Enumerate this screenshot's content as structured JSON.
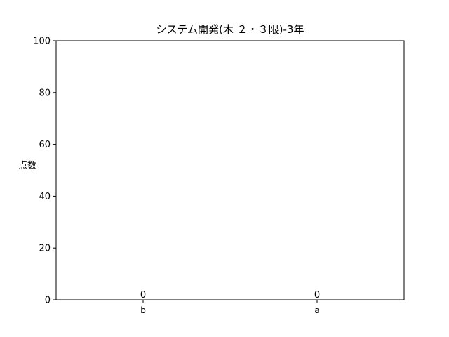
{
  "chart_data": {
    "type": "bar",
    "title": "システム開発(木 ２・３限)-3年",
    "xlabel": "",
    "ylabel": "点数",
    "categories": [
      "b",
      "a"
    ],
    "values": [
      0,
      0
    ],
    "data_labels": [
      "0",
      "0"
    ],
    "ylim": [
      0,
      100
    ],
    "yticks": [
      0,
      20,
      40,
      60,
      80,
      100
    ],
    "grid": false,
    "legend": "none",
    "bar_color": "#1f77b4"
  }
}
